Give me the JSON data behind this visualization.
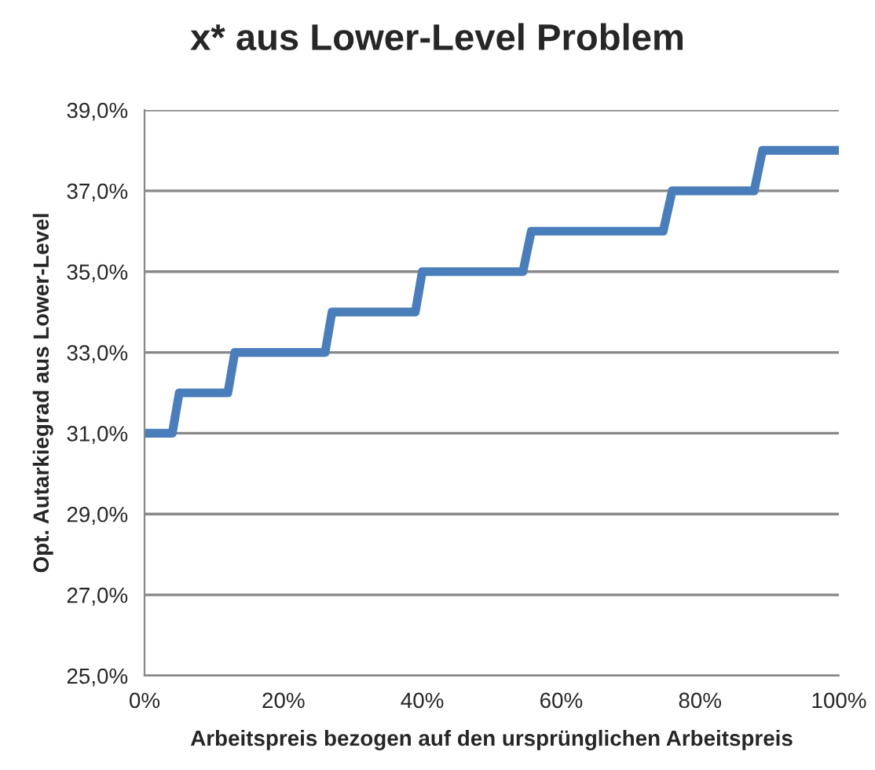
{
  "chart_data": {
    "type": "line",
    "title": "x* aus Lower-Level Problem",
    "xlabel": "Arbeitspreis bezogen auf den ursprünglichen Arbeitspreis",
    "ylabel": "Opt. Autarkiegrad aus Lower-Level",
    "series": [
      {
        "color": "#4a7ebb",
        "x": [
          0,
          4,
          5,
          12,
          13,
          26,
          27,
          39,
          40,
          54.5,
          55.7,
          74.7,
          76,
          87.8,
          89,
          100
        ],
        "values": [
          31,
          31,
          32,
          32,
          33,
          33,
          34,
          34,
          35,
          35,
          36,
          36,
          37,
          37,
          38,
          38
        ]
      }
    ],
    "xlim": [
      0,
      100
    ],
    "xticks": [
      {
        "value": 0,
        "label": "0%"
      },
      {
        "value": 20,
        "label": "20%"
      },
      {
        "value": 40,
        "label": "40%"
      },
      {
        "value": 60,
        "label": "60%"
      },
      {
        "value": 80,
        "label": "80%"
      },
      {
        "value": 100,
        "label": "100%"
      }
    ],
    "ylim": [
      25,
      39
    ],
    "yticks": [
      {
        "value": 25,
        "label": "25,0%"
      },
      {
        "value": 27,
        "label": "27,0%"
      },
      {
        "value": 29,
        "label": "29,0%"
      },
      {
        "value": 31,
        "label": "31,0%"
      },
      {
        "value": 33,
        "label": "33,0%"
      },
      {
        "value": 35,
        "label": "35,0%"
      },
      {
        "value": 37,
        "label": "37,0%"
      },
      {
        "value": 39,
        "label": "39,0%"
      }
    ],
    "grid": "y",
    "marker": "none",
    "line_style": "solid"
  }
}
